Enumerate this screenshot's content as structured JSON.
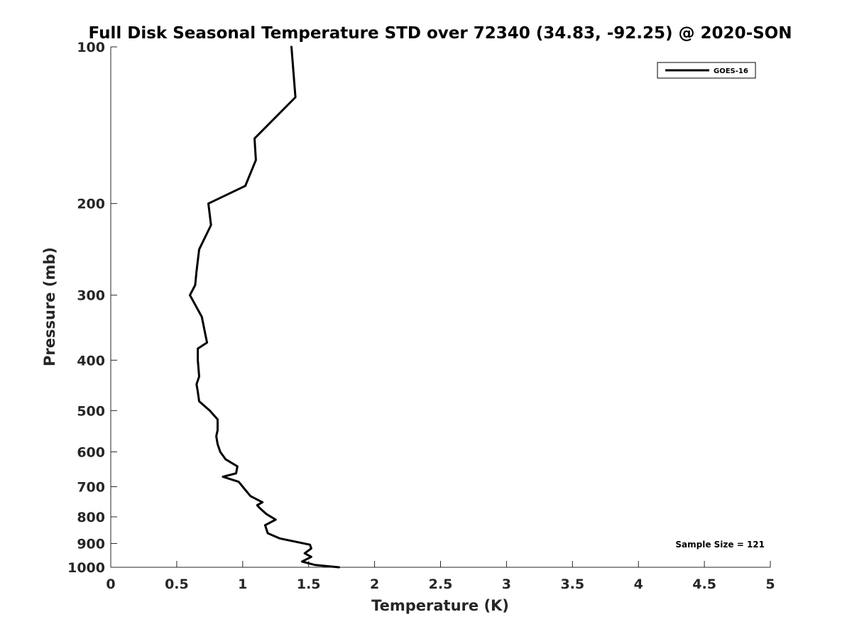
{
  "chart_data": {
    "type": "line",
    "title": "Full Disk Seasonal Temperature STD over 72340 (34.83, -92.25) @ 2020-SON",
    "xlabel": "Temperature (K)",
    "ylabel": "Pressure (mb)",
    "xlim": [
      0,
      5
    ],
    "ylim": [
      100,
      1000
    ],
    "yscale": "log",
    "y_reversed": true,
    "grid": false,
    "legend_position": "top-right",
    "x_ticks": [
      0,
      0.5,
      1,
      1.5,
      2,
      2.5,
      3,
      3.5,
      4,
      4.5,
      5
    ],
    "x_tick_labels": [
      "0",
      "0.5",
      "1",
      "1.5",
      "2",
      "2.5",
      "3",
      "3.5",
      "4",
      "4.5",
      "5"
    ],
    "y_ticks": [
      100,
      200,
      300,
      400,
      500,
      600,
      700,
      800,
      900,
      1000
    ],
    "y_tick_labels": [
      "100",
      "200",
      "300",
      "400",
      "500",
      "600",
      "700",
      "800",
      "900",
      "1000"
    ],
    "annotation": "Sample Size = 121",
    "series": [
      {
        "name": "GOES-16",
        "color": "#000000",
        "x": [
          1.37,
          1.4,
          1.09,
          1.1,
          1.02,
          0.74,
          0.76,
          0.67,
          0.65,
          0.64,
          0.6,
          0.69,
          0.72,
          0.73,
          0.66,
          0.66,
          0.67,
          0.65,
          0.66,
          0.67,
          0.75,
          0.81,
          0.81,
          0.8,
          0.81,
          0.83,
          0.87,
          0.96,
          0.95,
          0.85,
          0.97,
          1.02,
          1.06,
          1.15,
          1.11,
          1.13,
          1.18,
          1.25,
          1.17,
          1.19,
          1.28,
          1.51,
          1.52,
          1.47,
          1.52,
          1.45,
          1.55,
          1.73
        ],
        "y": [
          100,
          125,
          150,
          165,
          185,
          200,
          220,
          245,
          270,
          287,
          300,
          330,
          360,
          370,
          380,
          400,
          430,
          445,
          460,
          480,
          500,
          520,
          545,
          560,
          580,
          600,
          620,
          640,
          660,
          670,
          685,
          710,
          730,
          750,
          760,
          770,
          790,
          810,
          830,
          860,
          880,
          905,
          920,
          940,
          955,
          975,
          990,
          1000
        ]
      }
    ]
  }
}
